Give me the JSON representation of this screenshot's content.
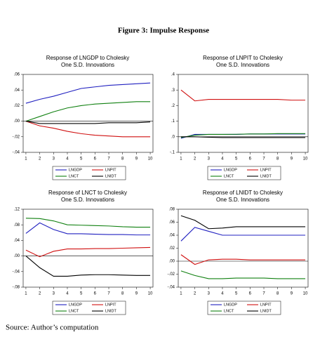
{
  "figure_title": "Figure 3: Impulse Response",
  "source": "Source: Author’s computation",
  "chart_data": [
    {
      "type": "line",
      "title": "Response of LNGDP to Cholesky",
      "subtitle": "One S.D. Innovations",
      "x": [
        1,
        2,
        3,
        4,
        5,
        6,
        7,
        8,
        9,
        10
      ],
      "xlim": [
        0.8,
        10.2
      ],
      "xticks": [
        1,
        2,
        3,
        4,
        5,
        6,
        7,
        8,
        9,
        10
      ],
      "ylim": [
        -0.04,
        0.06
      ],
      "yticks": [
        {
          "value": -0.04,
          "label": "-.04"
        },
        {
          "value": -0.02,
          "label": "-.02"
        },
        {
          "value": 0,
          "label": ".00"
        },
        {
          "value": 0.02,
          "label": ".02"
        },
        {
          "value": 0.04,
          "label": ".04"
        },
        {
          "value": 0.06,
          "label": ".06"
        }
      ],
      "legend": "bottom",
      "series": [
        {
          "name": "LNGDP",
          "color": "#2020c0",
          "values": [
            0.023,
            0.028,
            0.032,
            0.037,
            0.042,
            0.044,
            0.046,
            0.047,
            0.048,
            0.049
          ]
        },
        {
          "name": "LNPIT",
          "color": "#d01010",
          "values": [
            0,
            -0.006,
            -0.009,
            -0.013,
            -0.016,
            -0.018,
            -0.019,
            -0.02,
            -0.02,
            -0.02
          ]
        },
        {
          "name": "LNCT",
          "color": "#108010",
          "values": [
            0,
            0.006,
            0.012,
            0.017,
            0.02,
            0.022,
            0.023,
            0.024,
            0.025,
            0.025
          ]
        },
        {
          "name": "LNIDT",
          "color": "#000000",
          "values": [
            0,
            -0.003,
            -0.003,
            -0.003,
            -0.003,
            -0.003,
            -0.002,
            -0.002,
            -0.002,
            -0.001
          ]
        }
      ]
    },
    {
      "type": "line",
      "title": "Response of LNPIT to Cholesky",
      "subtitle": "One S.D. Innovations",
      "x": [
        1,
        2,
        3,
        4,
        5,
        6,
        7,
        8,
        9,
        10
      ],
      "xlim": [
        0.8,
        10.2
      ],
      "xticks": [
        1,
        2,
        3,
        4,
        5,
        6,
        7,
        8,
        9,
        10
      ],
      "ylim": [
        -0.1,
        0.4
      ],
      "yticks": [
        {
          "value": -0.1,
          "label": "-.1"
        },
        {
          "value": 0,
          "label": ".0"
        },
        {
          "value": 0.1,
          "label": ".1"
        },
        {
          "value": 0.2,
          "label": ".2"
        },
        {
          "value": 0.3,
          "label": ".3"
        },
        {
          "value": 0.4,
          "label": ".4"
        }
      ],
      "legend": "bottom",
      "series": [
        {
          "name": "LNGDP",
          "color": "#2020c0",
          "values": [
            -0.01,
            0.015,
            0.015,
            0.015,
            0.015,
            0.018,
            0.018,
            0.018,
            0.018,
            0.018
          ]
        },
        {
          "name": "LNPIT",
          "color": "#d01010",
          "values": [
            0.3,
            0.23,
            0.24,
            0.24,
            0.24,
            0.24,
            0.24,
            0.24,
            0.235,
            0.235
          ]
        },
        {
          "name": "LNCT",
          "color": "#108010",
          "values": [
            -0.005,
            0.01,
            0.015,
            0.015,
            0.016,
            0.018,
            0.018,
            0.02,
            0.02,
            0.02
          ]
        },
        {
          "name": "LNIDT",
          "color": "#000000",
          "values": [
            0,
            0,
            -0.003,
            -0.005,
            -0.005,
            -0.005,
            -0.005,
            -0.005,
            -0.005,
            -0.005
          ]
        }
      ]
    },
    {
      "type": "line",
      "title": "Response of LNCT to Cholesky",
      "subtitle": "One S.D. Innovations",
      "x": [
        1,
        2,
        3,
        4,
        5,
        6,
        7,
        8,
        9,
        10
      ],
      "xlim": [
        0.8,
        10.2
      ],
      "xticks": [
        1,
        2,
        3,
        4,
        5,
        6,
        7,
        8,
        9,
        10
      ],
      "ylim": [
        -0.08,
        0.12
      ],
      "yticks": [
        {
          "value": -0.08,
          "label": "-.08"
        },
        {
          "value": -0.04,
          "label": "-.04"
        },
        {
          "value": 0,
          "label": ".00"
        },
        {
          "value": 0.04,
          "label": ".04"
        },
        {
          "value": 0.08,
          "label": ".08"
        },
        {
          "value": 0.12,
          "label": ".12"
        }
      ],
      "legend": "bottom",
      "series": [
        {
          "name": "LNGDP",
          "color": "#2020c0",
          "values": [
            0.058,
            0.085,
            0.068,
            0.057,
            0.057,
            0.056,
            0.055,
            0.055,
            0.054,
            0.054
          ]
        },
        {
          "name": "LNPIT",
          "color": "#d01010",
          "values": [
            0.015,
            -0.002,
            0.012,
            0.018,
            0.018,
            0.019,
            0.019,
            0.02,
            0.021,
            0.022
          ]
        },
        {
          "name": "LNCT",
          "color": "#108010",
          "values": [
            0.097,
            0.096,
            0.09,
            0.08,
            0.079,
            0.078,
            0.077,
            0.075,
            0.074,
            0.074
          ]
        },
        {
          "name": "LNIDT",
          "color": "#000000",
          "values": [
            0,
            -0.03,
            -0.052,
            -0.052,
            -0.049,
            -0.048,
            -0.048,
            -0.049,
            -0.05,
            -0.05
          ]
        }
      ]
    },
    {
      "type": "line",
      "title": "Response of LNIDT to Cholesky",
      "subtitle": "One S.D. Innovations",
      "x": [
        1,
        2,
        3,
        4,
        5,
        6,
        7,
        8,
        9,
        10
      ],
      "xlim": [
        0.8,
        10.2
      ],
      "xticks": [
        1,
        2,
        3,
        4,
        5,
        6,
        7,
        8,
        9,
        10
      ],
      "ylim": [
        -0.04,
        0.08
      ],
      "yticks": [
        {
          "value": -0.04,
          "label": "-.04"
        },
        {
          "value": -0.02,
          "label": "-.02"
        },
        {
          "value": 0,
          "label": ".00"
        },
        {
          "value": 0.02,
          "label": ".02"
        },
        {
          "value": 0.04,
          "label": ".04"
        },
        {
          "value": 0.06,
          "label": ".06"
        },
        {
          "value": 0.08,
          "label": ".08"
        }
      ],
      "legend": "bottom",
      "series": [
        {
          "name": "LNGDP",
          "color": "#2020c0",
          "values": [
            0.031,
            0.052,
            0.046,
            0.04,
            0.04,
            0.04,
            0.04,
            0.04,
            0.04,
            0.04
          ]
        },
        {
          "name": "LNPIT",
          "color": "#d01010",
          "values": [
            0.01,
            -0.005,
            0.002,
            0.003,
            0.003,
            0.002,
            0.002,
            0.002,
            0.002,
            0.002
          ]
        },
        {
          "name": "LNCT",
          "color": "#108010",
          "values": [
            -0.015,
            -0.022,
            -0.027,
            -0.027,
            -0.026,
            -0.026,
            -0.026,
            -0.027,
            -0.027,
            -0.027
          ]
        },
        {
          "name": "LNIDT",
          "color": "#000000",
          "values": [
            0.07,
            0.063,
            0.05,
            0.051,
            0.053,
            0.053,
            0.053,
            0.053,
            0.053,
            0.053
          ]
        }
      ]
    }
  ]
}
